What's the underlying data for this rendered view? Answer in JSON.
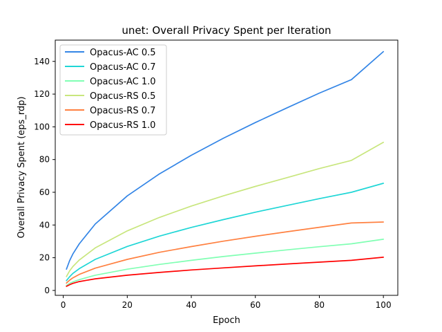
{
  "chart_data": {
    "type": "line",
    "title": "unet: Overall Privacy Spent per Iteration",
    "xlabel": "Epoch",
    "ylabel": "Overall Privacy Spent (eps_rdp)",
    "xlim": [
      -2.5,
      104.5
    ],
    "ylim": [
      -3,
      153
    ],
    "xticks": [
      0,
      20,
      40,
      60,
      80,
      100
    ],
    "yticks": [
      0,
      20,
      40,
      60,
      80,
      100,
      120,
      140
    ],
    "grid": false,
    "legend_position": "upper-left",
    "x": [
      1,
      2,
      3,
      5,
      10,
      20,
      30,
      40,
      50,
      60,
      70,
      80,
      90,
      100
    ],
    "series": [
      {
        "name": "Opacus-AC 0.5",
        "color": "#3385e6",
        "values": [
          13.0,
          18.3,
          22.3,
          28.5,
          40.6,
          57.8,
          71.2,
          82.6,
          93.0,
          102.6,
          111.7,
          120.6,
          128.8,
          146.0
        ]
      },
      {
        "name": "Opacus-AC 0.7",
        "color": "#1fd6d6",
        "values": [
          6.0,
          8.4,
          10.4,
          13.3,
          19.0,
          26.9,
          33.2,
          38.5,
          43.3,
          47.8,
          52.0,
          56.1,
          60.0,
          65.5
        ]
      },
      {
        "name": "Opacus-AC 1.0",
        "color": "#80ffb3",
        "values": [
          3.0,
          4.3,
          5.2,
          6.6,
          9.3,
          13.0,
          15.9,
          18.4,
          20.7,
          22.8,
          24.8,
          26.7,
          28.5,
          31.3
        ]
      },
      {
        "name": "Opacus-RS 0.5",
        "color": "#c8e67d",
        "values": [
          8.5,
          12.0,
          14.6,
          18.6,
          26.0,
          36.4,
          44.6,
          51.6,
          57.8,
          63.6,
          69.0,
          74.5,
          79.5,
          90.5
        ]
      },
      {
        "name": "Opacus-RS 0.7",
        "color": "#ff8040",
        "values": [
          4.5,
          6.3,
          7.7,
          9.8,
          13.6,
          19.0,
          23.3,
          26.8,
          30.1,
          33.1,
          35.9,
          38.6,
          41.2,
          41.8
        ]
      },
      {
        "name": "Opacus-RS 1.0",
        "color": "#ff0000",
        "values": [
          2.5,
          3.5,
          4.3,
          5.4,
          7.1,
          9.3,
          11.0,
          12.5,
          13.8,
          15.0,
          16.2,
          17.3,
          18.4,
          20.3
        ]
      }
    ]
  }
}
